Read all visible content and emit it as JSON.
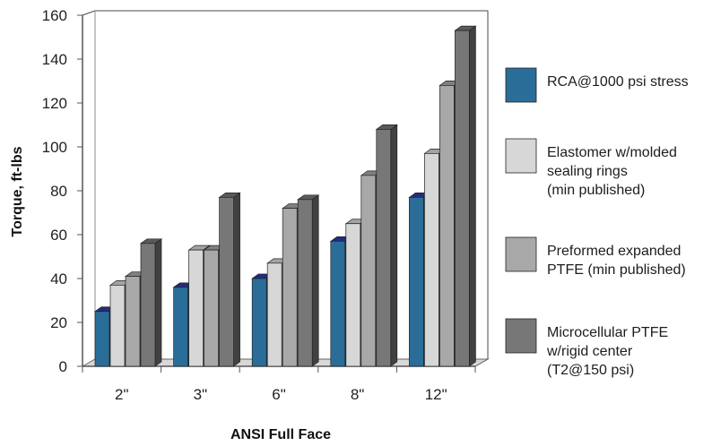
{
  "chart_data": {
    "type": "bar",
    "title": "",
    "xlabel": "ANSI Full Face",
    "ylabel": "Torque, ft-lbs",
    "categories": [
      "2\"",
      "3\"",
      "6\"",
      "8\"",
      "12\""
    ],
    "ylim": [
      0,
      160
    ],
    "yticks": [
      0,
      20,
      40,
      60,
      80,
      100,
      120,
      140,
      160
    ],
    "grid": false,
    "legend_position": "right",
    "series": [
      {
        "name": "RCA@1000 psi stress",
        "color": "#2a6d99",
        "values": [
          25,
          36,
          40,
          57,
          77
        ]
      },
      {
        "name": "Elastomer w/molded sealing rings (min published)",
        "color": "#d7d7d7",
        "values": [
          37,
          53,
          47,
          65,
          97
        ]
      },
      {
        "name": "Preformed expanded PTFE (min published)",
        "color": "#a8a8a8",
        "values": [
          41,
          53,
          72,
          87,
          128
        ]
      },
      {
        "name": "Microcellular PTFE w/rigid center (T2@150 psi)",
        "color": "#777777",
        "values": [
          56,
          77,
          76,
          108,
          153
        ]
      }
    ]
  }
}
